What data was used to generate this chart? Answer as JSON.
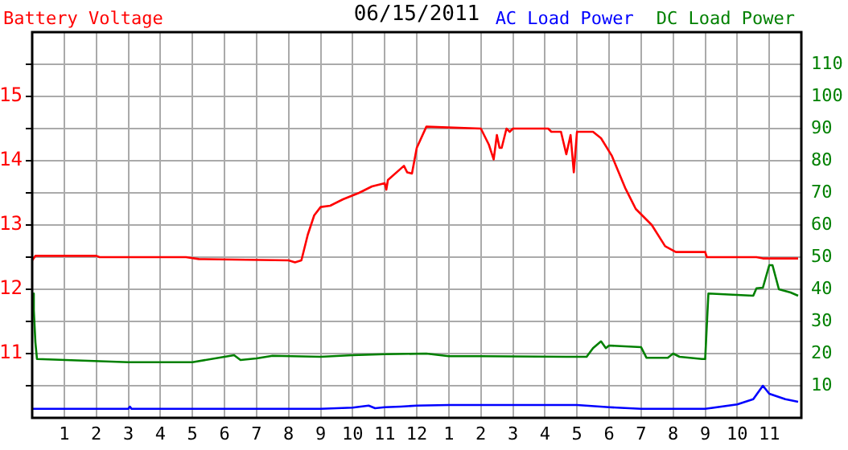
{
  "chart_data": {
    "type": "line",
    "title": "06/15/2011",
    "legend": "top",
    "grid": true,
    "marker": "none",
    "line_style": "solid",
    "xlim": [
      "2011-06-15T00:00",
      "2011-06-16T00:00"
    ],
    "xticks": [
      {
        "value": "2011-06-15T01:00",
        "label": "1"
      },
      {
        "value": "2011-06-15T02:00",
        "label": "2"
      },
      {
        "value": "2011-06-15T03:00",
        "label": "3"
      },
      {
        "value": "2011-06-15T04:00",
        "label": "4"
      },
      {
        "value": "2011-06-15T05:00",
        "label": "5"
      },
      {
        "value": "2011-06-15T06:00",
        "label": "6"
      },
      {
        "value": "2011-06-15T07:00",
        "label": "7"
      },
      {
        "value": "2011-06-15T08:00",
        "label": "8"
      },
      {
        "value": "2011-06-15T09:00",
        "label": "9"
      },
      {
        "value": "2011-06-15T10:00",
        "label": "10"
      },
      {
        "value": "2011-06-15T11:00",
        "label": "11"
      },
      {
        "value": "2011-06-15T12:00",
        "label": "12"
      },
      {
        "value": "2011-06-15T13:00",
        "label": "1"
      },
      {
        "value": "2011-06-15T14:00",
        "label": "2"
      },
      {
        "value": "2011-06-15T15:00",
        "label": "3"
      },
      {
        "value": "2011-06-15T16:00",
        "label": "4"
      },
      {
        "value": "2011-06-15T17:00",
        "label": "5"
      },
      {
        "value": "2011-06-15T18:00",
        "label": "6"
      },
      {
        "value": "2011-06-15T19:00",
        "label": "7"
      },
      {
        "value": "2011-06-15T20:00",
        "label": "8"
      },
      {
        "value": "2011-06-15T21:00",
        "label": "9"
      },
      {
        "value": "2011-06-15T22:00",
        "label": "10"
      },
      {
        "value": "2011-06-15T23:00",
        "label": "11"
      }
    ],
    "ylim": [
      10,
      16
    ],
    "yticks": [
      {
        "value": 10.5,
        "label": null
      },
      11,
      {
        "value": 11.5,
        "label": null
      },
      12,
      {
        "value": 12.5,
        "label": null
      },
      13,
      {
        "value": 13.5,
        "label": null
      },
      14,
      {
        "value": 14.5,
        "label": null
      },
      15,
      {
        "value": 15.5,
        "label": null
      }
    ],
    "y2lim": [
      0,
      120
    ],
    "y2ticks": [
      10,
      20,
      30,
      40,
      50,
      60,
      70,
      80,
      90,
      100,
      110
    ],
    "series": [
      {
        "name": "Battery Voltage",
        "color": "#ff0000",
        "axis": "y",
        "x": [
          "2011-06-15T00:00",
          "2011-06-15T00:06",
          "2011-06-15T02:00",
          "2011-06-15T02:06",
          "2011-06-15T04:48",
          "2011-06-15T05:12",
          "2011-06-15T08:00",
          "2011-06-15T08:12",
          "2011-06-15T08:24",
          "2011-06-15T08:36",
          "2011-06-15T08:48",
          "2011-06-15T09:00",
          "2011-06-15T09:18",
          "2011-06-15T09:42",
          "2011-06-15T10:12",
          "2011-06-15T10:36",
          "2011-06-15T11:00",
          "2011-06-15T11:03",
          "2011-06-15T11:06",
          "2011-06-15T11:36",
          "2011-06-15T11:42",
          "2011-06-15T11:51",
          "2011-06-15T12:00",
          "2011-06-15T12:18",
          "2011-06-15T12:48",
          "2011-06-15T14:00",
          "2011-06-15T14:15",
          "2011-06-15T14:24",
          "2011-06-15T14:30",
          "2011-06-15T14:35",
          "2011-06-15T14:39",
          "2011-06-15T14:48",
          "2011-06-15T14:54",
          "2011-06-15T15:00",
          "2011-06-15T16:06",
          "2011-06-15T16:12",
          "2011-06-15T16:30",
          "2011-06-15T16:40",
          "2011-06-15T16:48",
          "2011-06-15T16:54",
          "2011-06-15T17:00",
          "2011-06-15T17:30",
          "2011-06-15T17:45",
          "2011-06-15T18:05",
          "2011-06-15T18:30",
          "2011-06-15T18:50",
          "2011-06-15T19:20",
          "2011-06-15T19:45",
          "2011-06-15T20:05",
          "2011-06-15T21:00",
          "2011-06-15T21:03",
          "2011-06-15T22:36",
          "2011-06-15T22:48",
          "2011-06-15T23:54"
        ],
        "values": [
          12.45,
          12.52,
          12.52,
          12.5,
          12.5,
          12.47,
          12.45,
          12.42,
          12.45,
          12.85,
          13.15,
          13.28,
          13.3,
          13.4,
          13.5,
          13.6,
          13.65,
          13.55,
          13.7,
          13.92,
          13.82,
          13.8,
          14.2,
          14.53,
          14.52,
          14.5,
          14.25,
          14.02,
          14.4,
          14.2,
          14.2,
          14.5,
          14.45,
          14.5,
          14.5,
          14.45,
          14.45,
          14.1,
          14.4,
          13.82,
          14.45,
          14.45,
          14.35,
          14.08,
          13.58,
          13.25,
          13,
          12.67,
          12.58,
          12.58,
          12.5,
          12.5,
          12.48,
          12.48
        ]
      },
      {
        "name": "AC Load Power",
        "color": "#0000ff",
        "axis": "y2",
        "x": [
          "2011-06-15T00:00",
          "2011-06-15T03:00",
          "2011-06-15T03:03",
          "2011-06-15T03:06",
          "2011-06-15T08:00",
          "2011-06-15T09:00",
          "2011-06-15T10:00",
          "2011-06-15T10:30",
          "2011-06-15T10:42",
          "2011-06-15T11:00",
          "2011-06-15T11:30",
          "2011-06-15T12:00",
          "2011-06-15T13:00",
          "2011-06-15T14:00",
          "2011-06-15T15:00",
          "2011-06-15T16:00",
          "2011-06-15T17:00",
          "2011-06-15T18:00",
          "2011-06-15T19:00",
          "2011-06-15T21:00",
          "2011-06-15T22:00",
          "2011-06-15T22:30",
          "2011-06-15T22:48",
          "2011-06-15T23:00",
          "2011-06-15T23:30",
          "2011-06-15T23:54"
        ],
        "values": [
          2.8,
          2.8,
          3.5,
          2.8,
          2.8,
          2.8,
          3.2,
          3.8,
          3,
          3.3,
          3.5,
          3.8,
          4,
          4,
          4,
          4,
          4,
          3.3,
          2.8,
          2.8,
          4.2,
          5.8,
          10,
          7.5,
          5.8,
          5
        ]
      },
      {
        "name": "DC Load Power",
        "color": "#008000",
        "axis": "y2",
        "x": [
          "2011-06-15T00:00",
          "2011-06-15T00:03",
          "2011-06-15T00:06",
          "2011-06-15T00:09",
          "2011-06-15T03:00",
          "2011-06-15T05:00",
          "2011-06-15T06:18",
          "2011-06-15T06:30",
          "2011-06-15T07:00",
          "2011-06-15T07:30",
          "2011-06-15T09:00",
          "2011-06-15T10:00",
          "2011-06-15T11:00",
          "2011-06-15T12:18",
          "2011-06-15T13:00",
          "2011-06-15T14:00",
          "2011-06-15T16:40",
          "2011-06-15T17:18",
          "2011-06-15T17:30",
          "2011-06-15T17:45",
          "2011-06-15T17:54",
          "2011-06-15T18:00",
          "2011-06-15T19:00",
          "2011-06-15T19:10",
          "2011-06-15T19:50",
          "2011-06-15T20:00",
          "2011-06-15T20:12",
          "2011-06-15T20:54",
          "2011-06-15T21:00",
          "2011-06-15T21:03",
          "2011-06-15T21:06",
          "2011-06-15T22:30",
          "2011-06-15T22:36",
          "2011-06-15T22:48",
          "2011-06-15T23:00",
          "2011-06-15T23:06",
          "2011-06-15T23:18",
          "2011-06-15T23:40",
          "2011-06-15T23:54"
        ],
        "values": [
          38.7,
          33.5,
          23.5,
          18.3,
          17.3,
          17.3,
          19.5,
          18,
          18.5,
          19.3,
          19,
          19.5,
          19.8,
          20,
          19.2,
          19.2,
          19,
          19,
          21.7,
          23.8,
          21.7,
          22.5,
          22,
          18.7,
          18.7,
          20,
          19,
          18.3,
          18.3,
          28.7,
          38.7,
          38,
          40.3,
          40.5,
          47.5,
          47.5,
          40,
          39,
          38
        ]
      }
    ]
  }
}
